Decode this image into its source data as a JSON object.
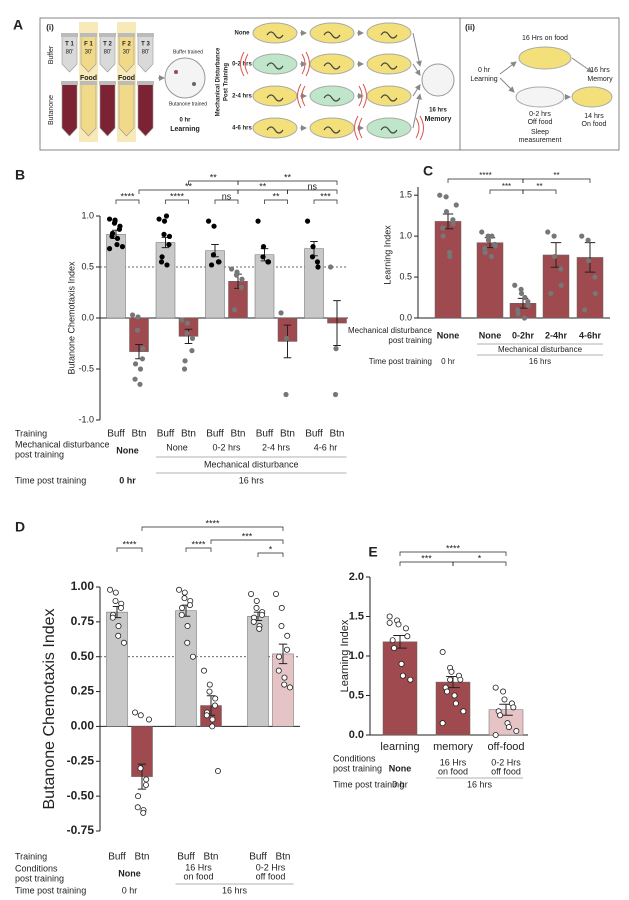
{
  "panel_a": {
    "letter": "A",
    "part_i": "(i)",
    "tube_labels": [
      "T 1",
      "F 1",
      "T 2",
      "F 2",
      "T 3"
    ],
    "tube_times": [
      "80'",
      "30'",
      "80'",
      "30'",
      "80'"
    ],
    "row_labels": [
      "Buffer",
      "Butanone"
    ],
    "food": [
      "Food",
      "Food"
    ],
    "plate_labels": [
      "Buffer trained",
      "Butanone trained"
    ],
    "learning_time": "0 hr",
    "learning": "Learning",
    "disturbance_title": [
      "Mechanical Disturbance",
      "Post Training"
    ],
    "disturbance_rows": [
      "None",
      "0-2 hrs",
      "2-4 hrs",
      "4-6 hrs"
    ],
    "memory_time": "16 hrs",
    "memory": "Memory",
    "part_ii": "(ii)",
    "ii_top": "16 Hrs on food",
    "ii_start": [
      "0 hr",
      "Learning"
    ],
    "ii_off": [
      "0-2 hrs",
      "Off food"
    ],
    "ii_sleep": [
      "Sleep",
      "measurement"
    ],
    "ii_on": [
      "14 hrs",
      "On food"
    ],
    "ii_end": [
      "16 hrs",
      "Memory"
    ]
  },
  "chart_data": [
    {
      "type": "bar",
      "letter": "B",
      "ylabel": "Butanone Chemotaxis Index",
      "ylim": [
        -1,
        1
      ],
      "yticks": [
        {
          "value": -1,
          "label": "-1.0"
        },
        -0.5,
        {
          "value": 0,
          "label": "0.0"
        },
        0.5,
        {
          "value": 1,
          "label": "1.0"
        }
      ],
      "reference_line": 0.5,
      "categories": [
        "Buff",
        "Btn",
        "Buff",
        "Btn",
        "Buff",
        "Btn",
        "Buff",
        "Btn",
        "Buff",
        "Btn"
      ],
      "categories_label": [
        "Training"
      ],
      "values": [
        0.82,
        -0.33,
        0.74,
        -0.18,
        0.66,
        0.36,
        0.62,
        -0.23,
        0.68,
        -0.05
      ],
      "errors": [
        0.04,
        0.07,
        0.05,
        0.07,
        0.06,
        0.07,
        0.06,
        0.16,
        0.07,
        0.22
      ],
      "colors": [
        "#c8c8c8",
        "#9e4a4e",
        "#c8c8c8",
        "#9e4a4e",
        "#c8c8c8",
        "#9e4a4e",
        "#c8c8c8",
        "#9e4a4e",
        "#c8c8c8",
        "#9e4a4e"
      ],
      "point_colors": [
        "#000",
        "#777",
        "#000",
        "#777",
        "#000",
        "#777",
        "#000",
        "#777",
        "#000",
        "#777"
      ],
      "points": [
        [
          0.97,
          0.95,
          0.93,
          0.9,
          0.87,
          0.83,
          0.8,
          0.78,
          0.72,
          0.7,
          0.68,
          0.96
        ],
        [
          0.03,
          0.01,
          -0.12,
          -0.3,
          -0.4,
          -0.45,
          -0.6,
          -0.5,
          -0.65
        ],
        [
          0.97,
          0.95,
          0.82,
          0.8,
          0.72,
          0.6,
          0.55,
          0.52,
          1.0
        ],
        [
          -0.02,
          -0.05,
          -0.15,
          -0.2,
          -0.32,
          -0.42,
          -0.5
        ],
        [
          0.95,
          0.9,
          0.62,
          0.55,
          0.55,
          0.52
        ],
        [
          0.48,
          0.45,
          0.42,
          0.38,
          0.3,
          0.08
        ],
        [
          0.95,
          0.7,
          0.6,
          0.55,
          0.55
        ],
        [
          0.05,
          -0.2,
          -0.75
        ],
        [
          0.95,
          0.7,
          0.6,
          0.5,
          0.55
        ],
        [
          0.5,
          -0.3,
          -0.75
        ]
      ],
      "significance": [
        "****",
        "****",
        "ns",
        "**",
        "***",
        "**",
        "**",
        "ns",
        "**",
        "**"
      ],
      "table": [
        {
          "label": [
            "Mechanical disturbance",
            "post training"
          ],
          "cells": [
            "None",
            "None",
            "0-2 hrs",
            "2-4 hrs",
            "4-6 hr"
          ]
        },
        {
          "label": [],
          "cells": [
            "Mechanical disturbance"
          ]
        },
        {
          "label": [
            "Time post training"
          ],
          "cells": [
            "0 hr",
            "16 hrs"
          ]
        }
      ]
    },
    {
      "type": "bar",
      "letter": "C",
      "ylabel": "Learning Index",
      "ylim": [
        0,
        1.6
      ],
      "yticks": [
        {
          "value": 0,
          "label": "0.0"
        },
        0.5,
        {
          "value": 1,
          "label": "1.0"
        },
        1.5
      ],
      "categories": [
        "None",
        "None",
        "0-2hr",
        "2-4hr",
        "4-6hr"
      ],
      "categories_label": [
        "Mechanical disturbance",
        "post training"
      ],
      "values": [
        1.18,
        0.92,
        0.18,
        0.77,
        0.74
      ],
      "errors": [
        0.09,
        0.06,
        0.06,
        0.15,
        0.18
      ],
      "colors": [
        "#9e4a4e",
        "#9e4a4e",
        "#9e4a4e",
        "#9e4a4e",
        "#9e4a4e"
      ],
      "point_colors": [
        "#777",
        "#777",
        "#777",
        "#777",
        "#777"
      ],
      "points": [
        [
          1.5,
          1.48,
          1.3,
          1.2,
          1.15,
          1.1,
          1.0,
          0.8,
          0.75,
          1.38
        ],
        [
          1.05,
          1.0,
          0.95,
          0.9,
          0.88,
          0.85,
          0.8,
          0.75,
          1.0
        ],
        [
          0.4,
          0.35,
          0.3,
          0.2,
          0.15,
          0.1,
          0.05,
          0.0,
          0.25
        ],
        [
          1.05,
          1.0,
          0.75,
          0.6,
          0.4,
          0.3
        ],
        [
          1.0,
          0.95,
          0.7,
          0.5,
          0.3,
          0.1
        ]
      ],
      "significance": [
        "****",
        "***",
        "**",
        "**"
      ],
      "table": [
        {
          "label": [],
          "cells": [
            "Mechanical disturbance"
          ]
        },
        {
          "label": [
            "Time post training"
          ],
          "cells": [
            "0 hr",
            "16 hrs"
          ]
        }
      ]
    },
    {
      "type": "bar",
      "letter": "D",
      "ylabel": "Butanone Chemotaxis Index",
      "ylim": [
        -0.75,
        1.0
      ],
      "yticks": [
        -0.75,
        {
          "value": -0.5,
          "label": "-0.50"
        },
        -0.25,
        {
          "value": 0,
          "label": "0.00"
        },
        0.25,
        {
          "value": 0.5,
          "label": "0.50"
        },
        0.75,
        {
          "value": 1,
          "label": "1.00"
        }
      ],
      "reference_line": 0.5,
      "categories": [
        "Buff",
        "Btn",
        "Buff",
        "Btn",
        "Buff",
        "Btn"
      ],
      "categories_label": [
        "Training"
      ],
      "values": [
        0.82,
        -0.36,
        0.83,
        0.15,
        0.79,
        0.52
      ],
      "errors": [
        0.04,
        0.09,
        0.04,
        0.07,
        0.03,
        0.07
      ],
      "colors": [
        "#c8c8c8",
        "#9e4a4e",
        "#c8c8c8",
        "#9e4a4e",
        "#c8c8c8",
        "#e6c3c5"
      ],
      "point_colors": [
        "#fff",
        "#fff",
        "#fff",
        "#fff",
        "#fff",
        "#fff"
      ],
      "points": [
        [
          0.98,
          0.96,
          0.9,
          0.88,
          0.85,
          0.8,
          0.78,
          0.72,
          0.65,
          0.6
        ],
        [
          0.1,
          0.08,
          -0.3,
          -0.38,
          -0.42,
          -0.5,
          -0.58,
          -0.6,
          -0.62,
          0.05
        ],
        [
          0.98,
          0.96,
          0.92,
          0.9,
          0.87,
          0.85,
          0.8,
          0.72,
          0.6,
          0.5
        ],
        [
          0.4,
          0.3,
          0.25,
          0.2,
          0.15,
          0.1,
          0.08,
          0.05,
          0.0,
          -0.32
        ],
        [
          0.95,
          0.9,
          0.85,
          0.82,
          0.8,
          0.78,
          0.75,
          0.72,
          0.7
        ],
        [
          0.95,
          0.85,
          0.72,
          0.65,
          0.55,
          0.5,
          0.4,
          0.35,
          0.3,
          0.28
        ]
      ],
      "significance": [
        "****",
        "****",
        "****",
        "***",
        "*"
      ],
      "table": [
        {
          "label": [
            "Conditions",
            "post training"
          ],
          "cells": [
            "None",
            "16 Hrs",
            "on food",
            "0-2 Hrs",
            "off food"
          ]
        },
        {
          "label": [
            "Time post training"
          ],
          "cells": [
            "0 hr",
            "16 hrs"
          ]
        }
      ]
    },
    {
      "type": "bar",
      "letter": "E",
      "ylabel": "Learning Index",
      "ylim": [
        0,
        2.0
      ],
      "yticks": [
        {
          "value": 0,
          "label": "0.0"
        },
        0.5,
        {
          "value": 1,
          "label": "1.0"
        },
        1.5,
        {
          "value": 2,
          "label": "2.0"
        }
      ],
      "categories": [
        "learning",
        "memory",
        "off-food"
      ],
      "values": [
        1.18,
        0.67,
        0.32
      ],
      "errors": [
        0.08,
        0.07,
        0.07
      ],
      "colors": [
        "#9e4a4e",
        "#9e4a4e",
        "#e6c3c5"
      ],
      "point_colors": [
        "#fff",
        "#fff",
        "#fff"
      ],
      "points": [
        [
          1.5,
          1.45,
          1.4,
          1.35,
          1.25,
          1.2,
          1.1,
          0.9,
          0.75,
          0.7,
          1.42
        ],
        [
          1.05,
          0.85,
          0.8,
          0.75,
          0.7,
          0.6,
          0.55,
          0.5,
          0.4,
          0.3,
          0.15,
          0.7
        ],
        [
          0.6,
          0.55,
          0.45,
          0.4,
          0.35,
          0.3,
          0.25,
          0.15,
          0.1,
          0.05,
          0.0
        ]
      ],
      "significance": [
        "****",
        "***",
        "*"
      ],
      "table": [
        {
          "label": [
            "Conditions",
            "post training"
          ],
          "cells": [
            "None",
            "16 Hrs",
            "on food",
            "0-2 Hrs",
            "off food"
          ]
        },
        {
          "label": [
            "Time post training"
          ],
          "cells": [
            "0 hr",
            "16 hrs"
          ]
        }
      ]
    }
  ]
}
